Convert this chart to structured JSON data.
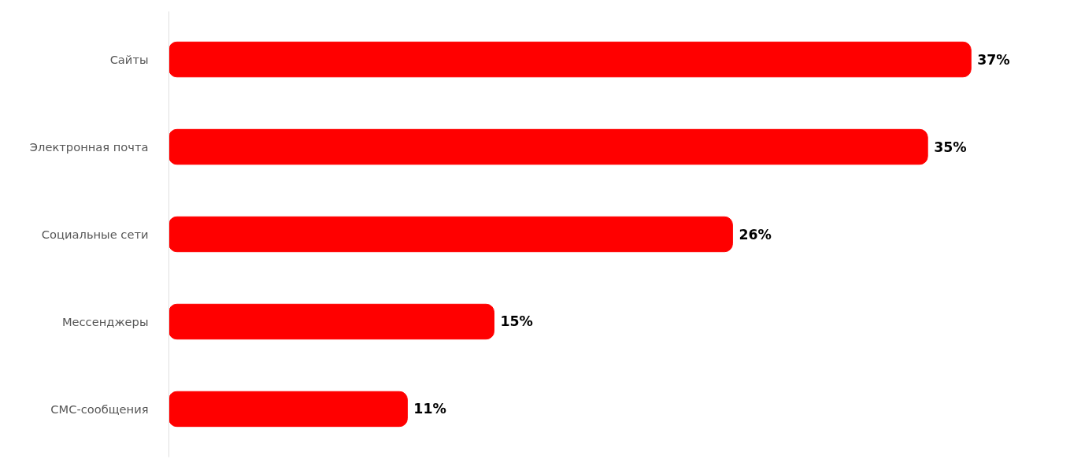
{
  "chart_data": {
    "type": "bar",
    "orientation": "horizontal",
    "categories": [
      "Сайты",
      "Электронная почта",
      "Социальные сети",
      "Мессенджеры",
      "СМС-сообщения"
    ],
    "series": [
      {
        "color": "#ff0000",
        "values": [
          37,
          35,
          26,
          15,
          11
        ],
        "value_labels": [
          "37%",
          "35%",
          "26%",
          "15%",
          "11%"
        ]
      }
    ],
    "tick_labels": "y"
  }
}
